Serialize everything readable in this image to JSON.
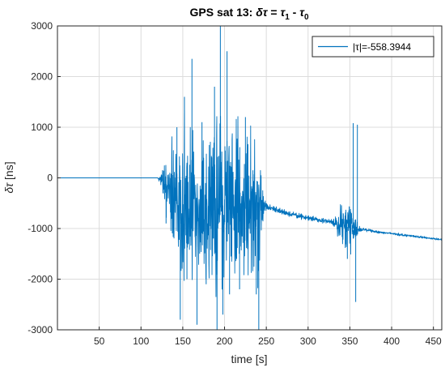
{
  "chart_data": {
    "type": "line",
    "title": {
      "prefix": "GPS sat 13: ",
      "delta": "δ",
      "tau": "τ",
      "equals": " = ",
      "minus": " - ",
      "sub1": "1",
      "sub0": "0"
    },
    "xlabel": "time [s]",
    "ylabel": {
      "delta": "δ",
      "tau": "τ",
      "unit": " [ns]"
    },
    "xlim": [
      0,
      460
    ],
    "ylim": [
      -3000,
      3000
    ],
    "xticks": [
      50,
      100,
      150,
      200,
      250,
      300,
      350,
      400,
      450
    ],
    "yticks": [
      -3000,
      -2000,
      -1000,
      0,
      1000,
      2000,
      3000
    ],
    "grid": true,
    "legend_position": "top-right",
    "series": [
      {
        "name": "|τ|=-558.3944",
        "color": "#0072bd",
        "x": [
          0,
          120,
          125,
          130,
          140,
          150,
          160,
          170,
          180,
          190,
          200,
          210,
          220,
          230,
          240,
          245,
          250,
          260,
          270,
          280,
          290,
          300,
          310,
          320,
          330,
          340,
          345,
          350,
          355,
          360,
          365,
          370,
          380,
          390,
          400,
          410,
          420,
          430,
          440,
          450,
          460
        ],
        "y": [
          0,
          0,
          -40,
          -120,
          -300,
          -600,
          -520,
          -560,
          -600,
          -650,
          -520,
          -580,
          -600,
          -620,
          -580,
          -520,
          -570,
          -620,
          -670,
          -720,
          -760,
          -790,
          -820,
          -850,
          -880,
          -920,
          -960,
          -980,
          -1000,
          -1010,
          -1020,
          -1030,
          -1060,
          -1080,
          -1100,
          -1120,
          -1140,
          -1160,
          -1180,
          -1200,
          -1220
        ],
        "spread": [
          0,
          0,
          150,
          800,
          1300,
          1700,
          1600,
          1400,
          1600,
          1800,
          1700,
          1500,
          1500,
          1400,
          1600,
          400,
          80,
          60,
          60,
          50,
          50,
          50,
          50,
          50,
          50,
          400,
          500,
          500,
          400,
          60,
          30,
          30,
          25,
          25,
          25,
          25,
          20,
          20,
          20,
          20,
          20
        ],
        "spikes": [
          {
            "x": 130,
            "y": -900
          },
          {
            "x": 143,
            "y": 1000
          },
          {
            "x": 147,
            "y": -2800
          },
          {
            "x": 152,
            "y": 1600
          },
          {
            "x": 155,
            "y": -2000
          },
          {
            "x": 161,
            "y": 2350
          },
          {
            "x": 167,
            "y": -2900
          },
          {
            "x": 173,
            "y": 1100
          },
          {
            "x": 178,
            "y": -2100
          },
          {
            "x": 188,
            "y": 1800
          },
          {
            "x": 191,
            "y": -3000
          },
          {
            "x": 195,
            "y": 3000
          },
          {
            "x": 198,
            "y": -2700
          },
          {
            "x": 203,
            "y": 2500
          },
          {
            "x": 206,
            "y": -2300
          },
          {
            "x": 214,
            "y": 700
          },
          {
            "x": 218,
            "y": -2200
          },
          {
            "x": 225,
            "y": 1200
          },
          {
            "x": 234,
            "y": 150
          },
          {
            "x": 238,
            "y": -2300
          },
          {
            "x": 241,
            "y": -3000
          },
          {
            "x": 347,
            "y": -1600
          },
          {
            "x": 354,
            "y": 1080
          },
          {
            "x": 357,
            "y": -2450
          },
          {
            "x": 359,
            "y": 1050
          }
        ]
      }
    ]
  }
}
